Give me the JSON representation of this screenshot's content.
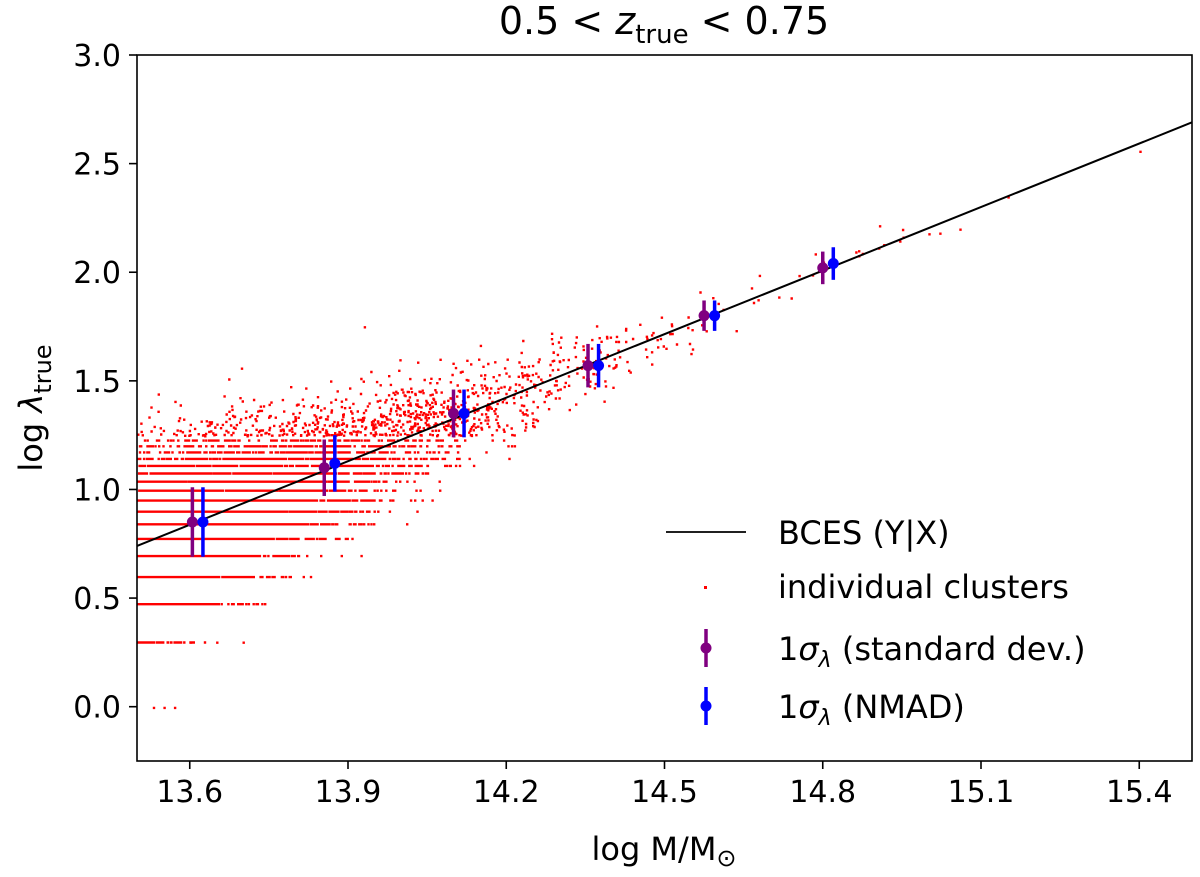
{
  "chart_data": {
    "type": "scatter",
    "title": {
      "prefix": "0.5 < ",
      "z": "z",
      "sub": "true",
      "suffix": " < 0.75"
    },
    "xlabel": {
      "main": "log M/M",
      "sun": "⊙"
    },
    "ylabel": {
      "main": "log ",
      "lambda": "λ",
      "sub": "true"
    },
    "xlim": [
      13.5,
      15.5
    ],
    "ylim": [
      -0.25,
      3.0
    ],
    "xticks": [
      "13.6",
      "13.9",
      "14.2",
      "14.5",
      "14.8",
      "15.1",
      "15.4"
    ],
    "yticks": [
      "0.0",
      "0.5",
      "1.0",
      "1.5",
      "2.0",
      "2.5",
      "3.0"
    ],
    "colors": {
      "fit": "#000000",
      "points": "#ff0000",
      "std": "#800080",
      "nmad": "#0000ff"
    },
    "fit_line": {
      "name": "BCES (Y|X)",
      "x": [
        13.5,
        15.5
      ],
      "y": [
        0.74,
        2.69
      ]
    },
    "scatter": {
      "name": "individual clusters",
      "mass_range": [
        13.5,
        15.25
      ],
      "note": "dense cloud of individual clusters around the fit; quantized levels at low richness",
      "sparse_points": [
        [
          13.53,
          0.0
        ],
        [
          13.55,
          0.0
        ],
        [
          13.57,
          0.0
        ],
        [
          13.6,
          0.3
        ],
        [
          13.65,
          0.3
        ],
        [
          13.7,
          0.3
        ],
        [
          14.95,
          2.2
        ],
        [
          15.0,
          2.18
        ],
        [
          15.15,
          2.35
        ],
        [
          15.4,
          2.56
        ]
      ]
    },
    "series": [
      {
        "name": "1σλ (standard dev.)",
        "label_prefix": "1",
        "label_sigma": "σ",
        "label_sub": "λ",
        "label_suffix": " (standard dev.)",
        "x": [
          13.605,
          13.855,
          14.1,
          14.355,
          14.575,
          14.8
        ],
        "y": [
          0.85,
          1.1,
          1.35,
          1.57,
          1.8,
          2.02
        ],
        "err": [
          0.16,
          0.13,
          0.11,
          0.1,
          0.07,
          0.075
        ]
      },
      {
        "name": "1σλ (NMAD)",
        "label_prefix": "1",
        "label_sigma": "σ",
        "label_sub": "λ",
        "label_suffix": " (NMAD)",
        "x": [
          13.625,
          13.875,
          14.12,
          14.375,
          14.595,
          14.82
        ],
        "y": [
          0.85,
          1.12,
          1.35,
          1.57,
          1.8,
          2.04
        ],
        "err": [
          0.16,
          0.13,
          0.11,
          0.1,
          0.07,
          0.075
        ]
      }
    ]
  }
}
